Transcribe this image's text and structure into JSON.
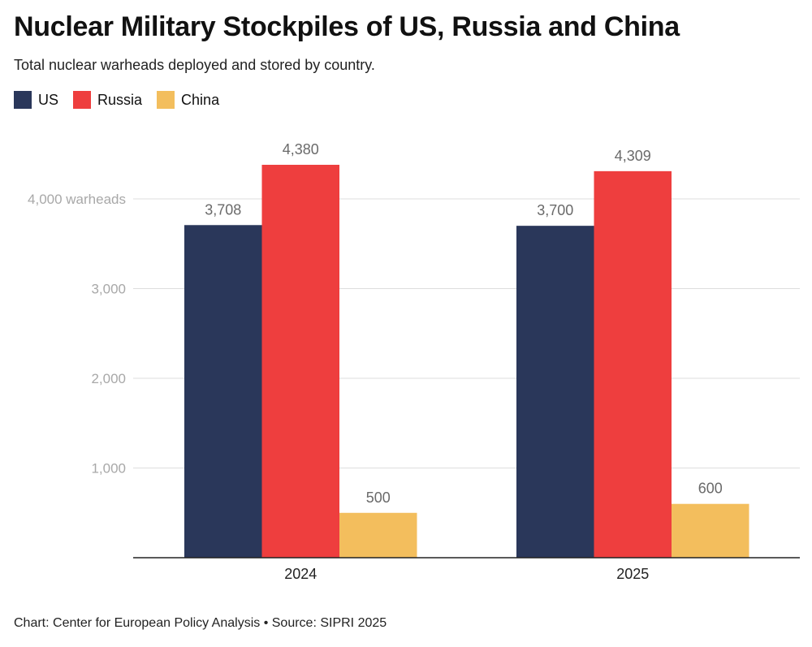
{
  "header": {
    "title": "Nuclear Military Stockpiles of US, Russia and China",
    "subtitle": "Total nuclear warheads deployed and stored by country."
  },
  "legend": [
    {
      "label": "US",
      "color": "#2a375a"
    },
    {
      "label": "Russia",
      "color": "#ee3e3e"
    },
    {
      "label": "China",
      "color": "#f3be5d"
    }
  ],
  "footer": {
    "source": "Chart: Center for European Policy Analysis • Source: SIPRI 2025"
  },
  "chart_data": {
    "type": "bar",
    "title": "Nuclear Military Stockpiles of US, Russia and China",
    "subtitle": "Total nuclear warheads deployed and stored by country.",
    "categories": [
      "2024",
      "2025"
    ],
    "series": [
      {
        "name": "US",
        "color": "#2a375a",
        "values": [
          3708,
          3700
        ],
        "labels": [
          "3,708",
          "3,700"
        ]
      },
      {
        "name": "Russia",
        "color": "#ee3e3e",
        "values": [
          4380,
          4309
        ],
        "labels": [
          "4,380",
          "4,309"
        ]
      },
      {
        "name": "China",
        "color": "#f3be5d",
        "values": [
          500,
          600
        ],
        "labels": [
          "500",
          "600"
        ]
      }
    ],
    "yticks": [
      {
        "value": 1000,
        "label": "1,000"
      },
      {
        "value": 2000,
        "label": "2,000"
      },
      {
        "value": 3000,
        "label": "3,000"
      },
      {
        "value": 4000,
        "label": "4,000 warheads"
      }
    ],
    "ylim": [
      0,
      5000
    ],
    "grid": true,
    "legend_position": "top-left",
    "xlabel": "",
    "ylabel": ""
  }
}
